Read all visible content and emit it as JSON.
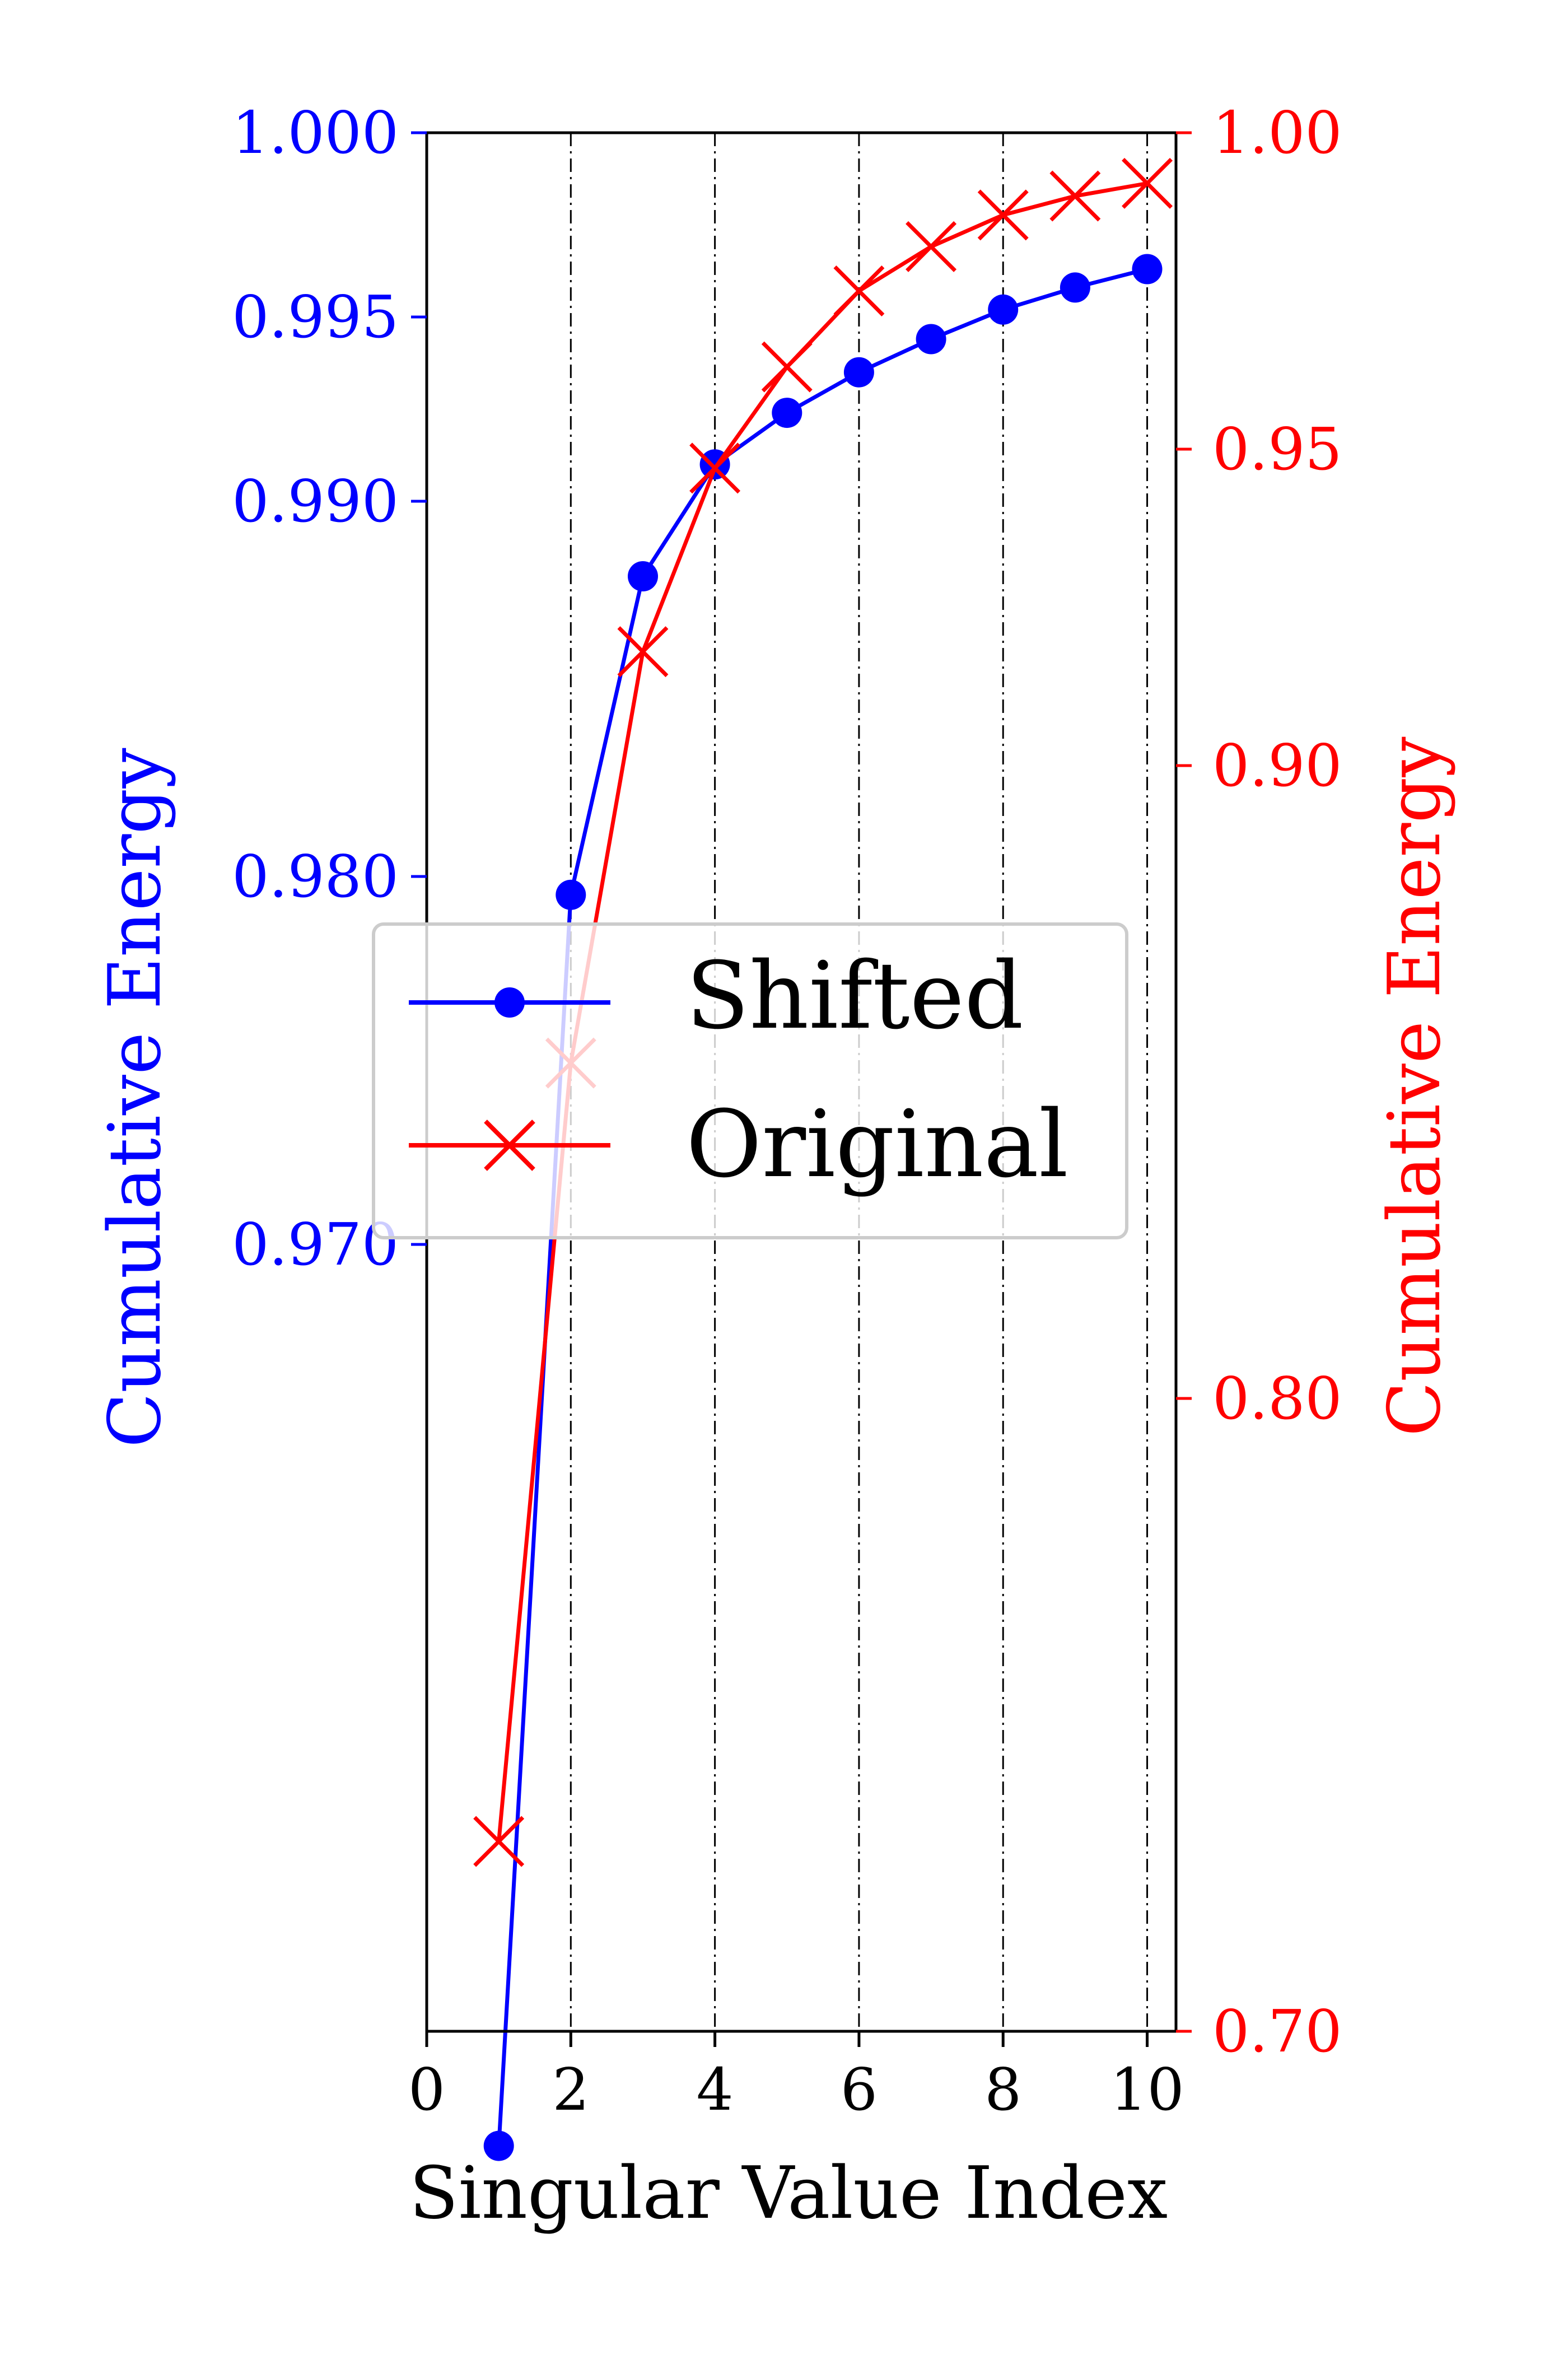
{
  "chart_data": {
    "type": "line",
    "xlabel": "Singular Value Index",
    "ylabel_left": "Cumulative Energy",
    "ylabel_right": "Cumulative Energy",
    "x_ticks": [
      "0",
      "2",
      "4",
      "6",
      "8",
      "10"
    ],
    "xlim": [
      0,
      10.4
    ],
    "y_left_ticks": [
      "1.000",
      "0.995",
      "0.990",
      "0.980",
      "0.970"
    ],
    "y_right_ticks": [
      "1.00",
      "0.95",
      "0.90",
      "0.80",
      "0.70"
    ],
    "left_color": "#0000ff",
    "right_color": "#ff0000",
    "grid": "vertical dash-dot lines at x = 2, 4, 6, 8, 10",
    "legend_placement": "center-left",
    "x": [
      1,
      2,
      3,
      4,
      5,
      6,
      7,
      8,
      9,
      10
    ],
    "series": [
      {
        "name": "Shifted",
        "axis": "left",
        "marker": "circle",
        "color": "#0000ff",
        "values": [
          0.9455,
          0.9795,
          0.988,
          0.991,
          0.9924,
          0.9935,
          0.9944,
          0.9952,
          0.9958,
          0.9963
        ]
      },
      {
        "name": "Original",
        "axis": "right",
        "marker": "x",
        "color": "#ff0000",
        "values": [
          0.73,
          0.853,
          0.918,
          0.947,
          0.963,
          0.975,
          0.982,
          0.987,
          0.99,
          0.992
        ]
      }
    ]
  }
}
